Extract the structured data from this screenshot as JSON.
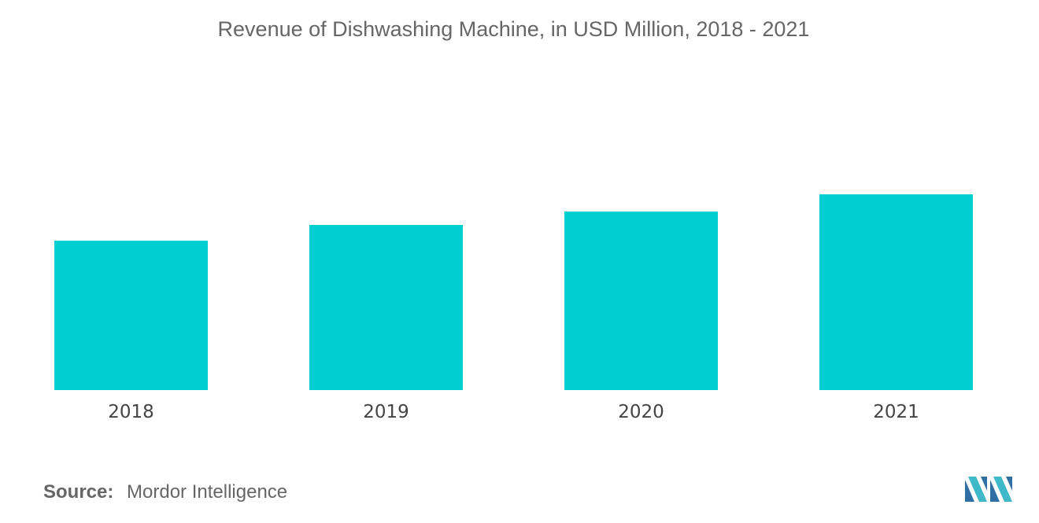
{
  "chart_data": {
    "type": "bar",
    "title": "Revenue of Dishwashing Machine, in USD Million, 2018 - 2021",
    "categories": [
      "2018",
      "2019",
      "2020",
      "2021"
    ],
    "values": [
      100,
      110.5,
      119.5,
      131
    ],
    "ylim": [
      0,
      170
    ],
    "xlabel": "",
    "ylabel": "",
    "grid": false,
    "legend": "none",
    "bar_color": "#00CED1"
  },
  "source": {
    "label": "Source:",
    "value": "Mordor Intelligence"
  },
  "logo": {
    "icon": "mordor-intelligence-logo",
    "colors": [
      "#2f6fa6",
      "#3fb8c9"
    ]
  }
}
